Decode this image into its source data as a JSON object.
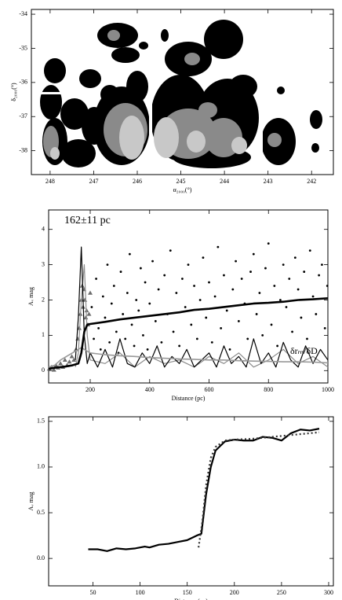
{
  "chart_data": [
    {
      "type": "map",
      "xlabel": "α₂₀₀₀(°)",
      "ylabel": "δ₂₀₀₀(°)",
      "xlim": [
        248.43,
        241.5
      ],
      "ylim": [
        -38.7,
        -33.86
      ],
      "xticks": [
        248,
        247,
        246,
        245,
        244,
        243,
        242
      ],
      "yticks": [
        -38,
        -37,
        -36,
        -35,
        -34
      ]
    },
    {
      "type": "scatter",
      "xlabel": "Distance (pc)",
      "ylabel": "Aᵥ mag",
      "annotations": [
        "162±11 pc",
        "δrₘ/δD"
      ],
      "xlim": [
        60,
        1000
      ],
      "ylim": [
        -0.35,
        4.55
      ],
      "xticks": [
        200,
        400,
        600,
        800,
        1000
      ],
      "yticks": [
        0,
        1,
        2,
        3,
        4
      ],
      "series": [
        {
          "marker": "dot",
          "color": "#000000",
          "x": [
            205,
            212,
            220,
            228,
            235,
            243,
            250,
            258,
            265,
            272,
            280,
            288,
            295,
            303,
            310,
            318,
            325,
            333,
            340,
            348,
            355,
            363,
            370,
            378,
            385,
            393,
            400,
            410,
            420,
            430,
            440,
            450,
            460,
            470,
            480,
            490,
            500,
            510,
            520,
            530,
            540,
            550,
            560,
            570,
            580,
            590,
            600,
            610,
            620,
            630,
            640,
            650,
            660,
            670,
            680,
            690,
            700,
            710,
            720,
            730,
            740,
            750,
            760,
            770,
            780,
            790,
            800,
            810,
            820,
            830,
            840,
            850,
            860,
            870,
            880,
            890,
            900,
            910,
            920,
            930,
            940,
            950,
            960,
            970,
            980,
            990,
            998
          ],
          "values": [
            1.8,
            0.9,
            2.6,
            1.2,
            0.6,
            2.1,
            1.5,
            3.0,
            0.8,
            1.9,
            2.4,
            1.1,
            0.5,
            2.8,
            1.6,
            0.9,
            2.2,
            3.3,
            1.3,
            0.7,
            2.0,
            1.7,
            2.9,
            1.0,
            2.5,
            0.6,
            1.9,
            3.1,
            1.4,
            2.3,
            0.8,
            2.7,
            1.6,
            3.4,
            1.1,
            2.2,
            0.7,
            2.6,
            1.8,
            3.0,
            1.3,
            2.4,
            0.9,
            2.0,
            3.2,
            1.5,
            2.5,
            0.8,
            2.1,
            3.5,
            1.2,
            2.7,
            1.7,
            0.6,
            2.3,
            3.1,
            1.4,
            2.6,
            1.9,
            0.9,
            2.8,
            3.3,
            1.6,
            2.2,
            1.0,
            2.9,
            3.6,
            1.3,
            2.4,
            0.7,
            2.0,
            3.0,
            1.8,
            2.6,
            1.1,
            3.2,
            2.3,
            1.5,
            2.8,
            0.9,
            3.4,
            2.1,
            1.6,
            2.7,
            3.0,
            1.2,
            2.4
          ]
        },
        {
          "marker": "triangle",
          "color": "#6e6e6e",
          "x": [
            62,
            70,
            78,
            85,
            92,
            100,
            108,
            115,
            122,
            130,
            138,
            145,
            152,
            158,
            163,
            167,
            170,
            173,
            176,
            179,
            182,
            185,
            188,
            192,
            196,
            200
          ],
          "values": [
            0.05,
            0.1,
            0.02,
            0.15,
            0.08,
            0.2,
            0.1,
            0.3,
            0.15,
            0.25,
            0.4,
            0.3,
            0.6,
            0.9,
            1.2,
            1.6,
            2.0,
            2.4,
            1.8,
            2.3,
            2.0,
            1.5,
            1.7,
            1.3,
            1.6,
            2.2
          ]
        },
        {
          "marker": "line",
          "color": "#8c8c8c",
          "linewidth": 1.2,
          "x": [
            150,
            160,
            170,
            180,
            190,
            200,
            250,
            300,
            350,
            400,
            450,
            500,
            550,
            600,
            650,
            700,
            750,
            800,
            850,
            900,
            950,
            1000
          ],
          "values": [
            0.1,
            0.5,
            2.0,
            3.0,
            1.0,
            0.3,
            0.2,
            0.5,
            0.1,
            0.4,
            0.2,
            0.3,
            0.1,
            0.4,
            0.2,
            0.5,
            0.1,
            0.3,
            0.6,
            0.2,
            0.4,
            0.1
          ]
        },
        {
          "marker": "line",
          "color": "#000000",
          "linewidth": 1.2,
          "x": [
            150,
            160,
            170,
            180,
            190,
            200,
            225,
            250,
            275,
            300,
            325,
            350,
            375,
            400,
            425,
            450,
            475,
            500,
            525,
            550,
            575,
            600,
            625,
            650,
            675,
            700,
            725,
            750,
            775,
            800,
            825,
            850,
            875,
            900,
            925,
            950,
            975,
            1000
          ],
          "values": [
            0.3,
            1.5,
            3.5,
            1.0,
            0.2,
            0.5,
            0.1,
            0.6,
            0.1,
            0.9,
            0.2,
            0.1,
            0.5,
            0.2,
            0.7,
            0.1,
            0.4,
            0.2,
            0.6,
            0.1,
            0.3,
            0.5,
            0.1,
            0.7,
            0.2,
            0.4,
            0.1,
            0.9,
            0.2,
            0.5,
            0.1,
            0.8,
            0.3,
            0.1,
            0.7,
            0.2,
            0.6,
            0.3
          ]
        },
        {
          "marker": "line",
          "color": "#999999",
          "linewidth": 1.6,
          "x": [
            60,
            80,
            100,
            120,
            140,
            160,
            170,
            180,
            190,
            200,
            250,
            300,
            350,
            400,
            450,
            500,
            550,
            600,
            650,
            700,
            750,
            800,
            850,
            900,
            950,
            1000
          ],
          "values": [
            0.1,
            0.15,
            0.3,
            0.4,
            0.5,
            0.6,
            0.65,
            0.6,
            0.55,
            0.5,
            0.45,
            0.42,
            0.4,
            0.37,
            0.35,
            0.33,
            0.32,
            0.3,
            0.3,
            0.28,
            0.27,
            0.26,
            0.25,
            0.25,
            0.24,
            0.22
          ]
        },
        {
          "marker": "line",
          "color": "#000000",
          "linewidth": 2.6,
          "x": [
            60,
            80,
            100,
            120,
            140,
            160,
            170,
            180,
            190,
            200,
            250,
            300,
            350,
            400,
            450,
            500,
            550,
            600,
            650,
            700,
            750,
            800,
            850,
            900,
            950,
            1000
          ],
          "values": [
            0.05,
            0.08,
            0.1,
            0.12,
            0.15,
            0.2,
            0.5,
            1.1,
            1.3,
            1.32,
            1.38,
            1.45,
            1.5,
            1.55,
            1.6,
            1.65,
            1.72,
            1.75,
            1.8,
            1.85,
            1.9,
            1.92,
            1.95,
            2.0,
            2.02,
            2.05
          ]
        }
      ]
    },
    {
      "type": "line",
      "xlabel": "Distance (pc)",
      "ylabel": "Aᵥ mag",
      "xlim": [
        3,
        305
      ],
      "ylim": [
        -0.3,
        1.55
      ],
      "xticks": [
        50,
        100,
        150,
        200,
        250,
        300
      ],
      "yticks": [
        {
          "value": 0,
          "label": "0.0"
        },
        {
          "value": 0.5,
          "label": "0.5"
        },
        {
          "value": 1,
          "label": "1.0"
        },
        {
          "value": 1.5,
          "label": "1.5"
        }
      ],
      "series": [
        {
          "marker": "line",
          "color": "#000000",
          "linewidth": 2.2,
          "dash": false,
          "x": [
            45,
            55,
            65,
            75,
            85,
            95,
            105,
            110,
            120,
            130,
            140,
            150,
            160,
            165,
            170,
            175,
            180,
            190,
            200,
            210,
            220,
            230,
            240,
            250,
            260,
            270,
            280,
            290
          ],
          "values": [
            0.1,
            0.1,
            0.08,
            0.11,
            0.1,
            0.11,
            0.13,
            0.12,
            0.15,
            0.16,
            0.18,
            0.2,
            0.25,
            0.27,
            0.7,
            1.0,
            1.18,
            1.28,
            1.3,
            1.29,
            1.29,
            1.33,
            1.32,
            1.29,
            1.37,
            1.41,
            1.4,
            1.42
          ]
        },
        {
          "marker": "line",
          "color": "#333333",
          "linewidth": 2.2,
          "dash": true,
          "x": [
            162,
            166,
            170,
            175,
            180,
            190,
            200,
            220,
            240,
            260,
            280,
            290
          ],
          "values": [
            0.12,
            0.4,
            0.8,
            1.1,
            1.22,
            1.29,
            1.3,
            1.31,
            1.33,
            1.35,
            1.37,
            1.38
          ]
        }
      ]
    }
  ]
}
